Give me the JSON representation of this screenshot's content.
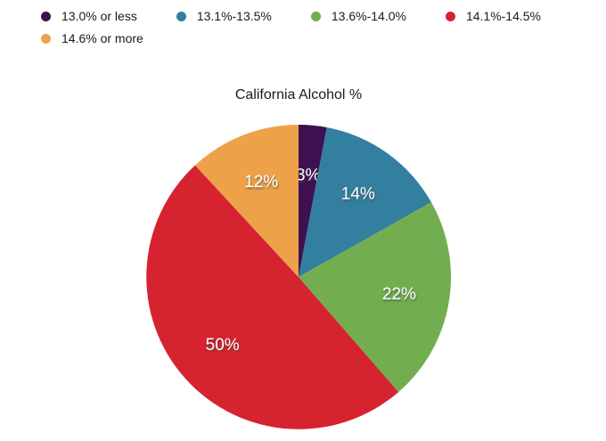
{
  "title": "California Alcohol %",
  "colors": {
    "purple": "#3e1152",
    "blue": "#337f9f",
    "green": "#72ae4f",
    "red": "#d5232f",
    "orange": "#eda24a",
    "text": "#1a1a1a",
    "slice_label": "#ffffff",
    "background": "#ffffff"
  },
  "chart_data": {
    "type": "pie",
    "title": "California Alcohol %",
    "legend_position": "top-left",
    "start_angle_deg": 0,
    "direction": "clockwise",
    "slices": [
      {
        "label": "13.0% or less",
        "value": 3,
        "display": "3%",
        "color": "#3e1152"
      },
      {
        "label": "13.1%-13.5%",
        "value": 14,
        "display": "14%",
        "color": "#337f9f"
      },
      {
        "label": "13.6%-14.0%",
        "value": 22,
        "display": "22%",
        "color": "#72ae4f"
      },
      {
        "label": "14.1%-14.5%",
        "value": 50,
        "display": "50%",
        "color": "#d5232f"
      },
      {
        "label": "14.6% or more",
        "value": 12,
        "display": "12%",
        "color": "#eda24a"
      }
    ]
  }
}
